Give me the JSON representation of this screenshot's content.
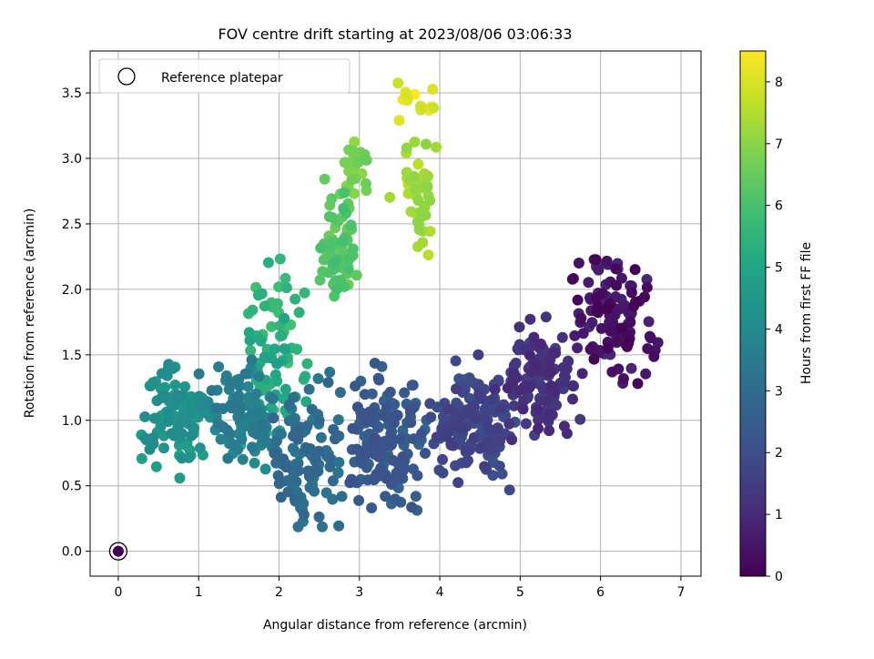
{
  "chart_data": {
    "type": "scatter",
    "title": "FOV centre drift starting at 2023/08/06 03:06:33",
    "xlabel": "Angular distance from reference (arcmin)",
    "ylabel": "Rotation from reference (arcmin)",
    "xlim": [
      -0.35,
      7.25
    ],
    "ylim": [
      -0.19,
      3.82
    ],
    "xticks": [
      0,
      1,
      2,
      3,
      4,
      5,
      6,
      7
    ],
    "xtick_labels": [
      "0",
      "1",
      "2",
      "3",
      "4",
      "5",
      "6",
      "7"
    ],
    "yticks": [
      0.0,
      0.5,
      1.0,
      1.5,
      2.0,
      2.5,
      3.0,
      3.5
    ],
    "ytick_labels": [
      "0.0",
      "0.5",
      "1.0",
      "1.5",
      "2.0",
      "2.5",
      "3.0",
      "3.5"
    ],
    "grid": true,
    "legend": {
      "placement": "top-left",
      "entries": [
        "Reference platepar"
      ]
    },
    "reference_point": {
      "x": 0.0,
      "y": 0.0
    },
    "colorbar": {
      "label": "Hours from first FF file",
      "colormap": "viridis",
      "range": [
        0,
        8.5
      ],
      "ticks": [
        0,
        1,
        2,
        3,
        4,
        5,
        6,
        7,
        8
      ],
      "tick_labels": [
        "0",
        "1",
        "2",
        "3",
        "4",
        "5",
        "6",
        "7",
        "8"
      ]
    },
    "point_clusters": [
      {
        "hours": [
          0.0,
          1.0
        ],
        "count": 110,
        "x": [
          5.5,
          6.8
        ],
        "y": [
          1.1,
          2.45
        ]
      },
      {
        "hours": [
          0.0,
          1.0
        ],
        "count": 8,
        "x": [
          6.3,
          6.9
        ],
        "y": [
          1.45,
          1.75
        ]
      },
      {
        "hours": [
          0.9,
          1.6
        ],
        "count": 120,
        "x": [
          4.6,
          5.9
        ],
        "y": [
          0.75,
          1.9
        ]
      },
      {
        "hours": [
          1.5,
          2.2
        ],
        "count": 150,
        "x": [
          3.6,
          5.1
        ],
        "y": [
          0.35,
          1.6
        ]
      },
      {
        "hours": [
          2.1,
          2.8
        ],
        "count": 150,
        "x": [
          2.6,
          4.0
        ],
        "y": [
          0.08,
          1.55
        ]
      },
      {
        "hours": [
          2.7,
          3.4
        ],
        "count": 110,
        "x": [
          1.7,
          3.0
        ],
        "y": [
          0.08,
          1.45
        ]
      },
      {
        "hours": [
          3.3,
          4.1
        ],
        "count": 100,
        "x": [
          0.9,
          2.2
        ],
        "y": [
          0.5,
          1.55
        ]
      },
      {
        "hours": [
          4.0,
          4.9
        ],
        "count": 110,
        "x": [
          0.15,
          1.25
        ],
        "y": [
          0.5,
          1.62
        ]
      },
      {
        "hours": [
          4.8,
          5.5
        ],
        "count": 50,
        "x": [
          1.3,
          2.5
        ],
        "y": [
          0.65,
          2.0
        ]
      },
      {
        "hours": [
          5.3,
          6.0
        ],
        "count": 35,
        "x": [
          1.4,
          2.55
        ],
        "y": [
          1.25,
          2.35
        ]
      },
      {
        "hours": [
          5.9,
          6.6
        ],
        "count": 70,
        "x": [
          2.4,
          3.1
        ],
        "y": [
          1.75,
          2.9
        ]
      },
      {
        "hours": [
          6.5,
          7.1
        ],
        "count": 28,
        "x": [
          2.7,
          3.2
        ],
        "y": [
          2.55,
          3.3
        ]
      },
      {
        "hours": [
          7.0,
          7.7
        ],
        "count": 45,
        "x": [
          3.35,
          4.05
        ],
        "y": [
          1.95,
          3.35
        ]
      },
      {
        "hours": [
          7.6,
          8.5
        ],
        "count": 14,
        "x": [
          3.3,
          4.15
        ],
        "y": [
          3.2,
          3.65
        ]
      }
    ]
  }
}
